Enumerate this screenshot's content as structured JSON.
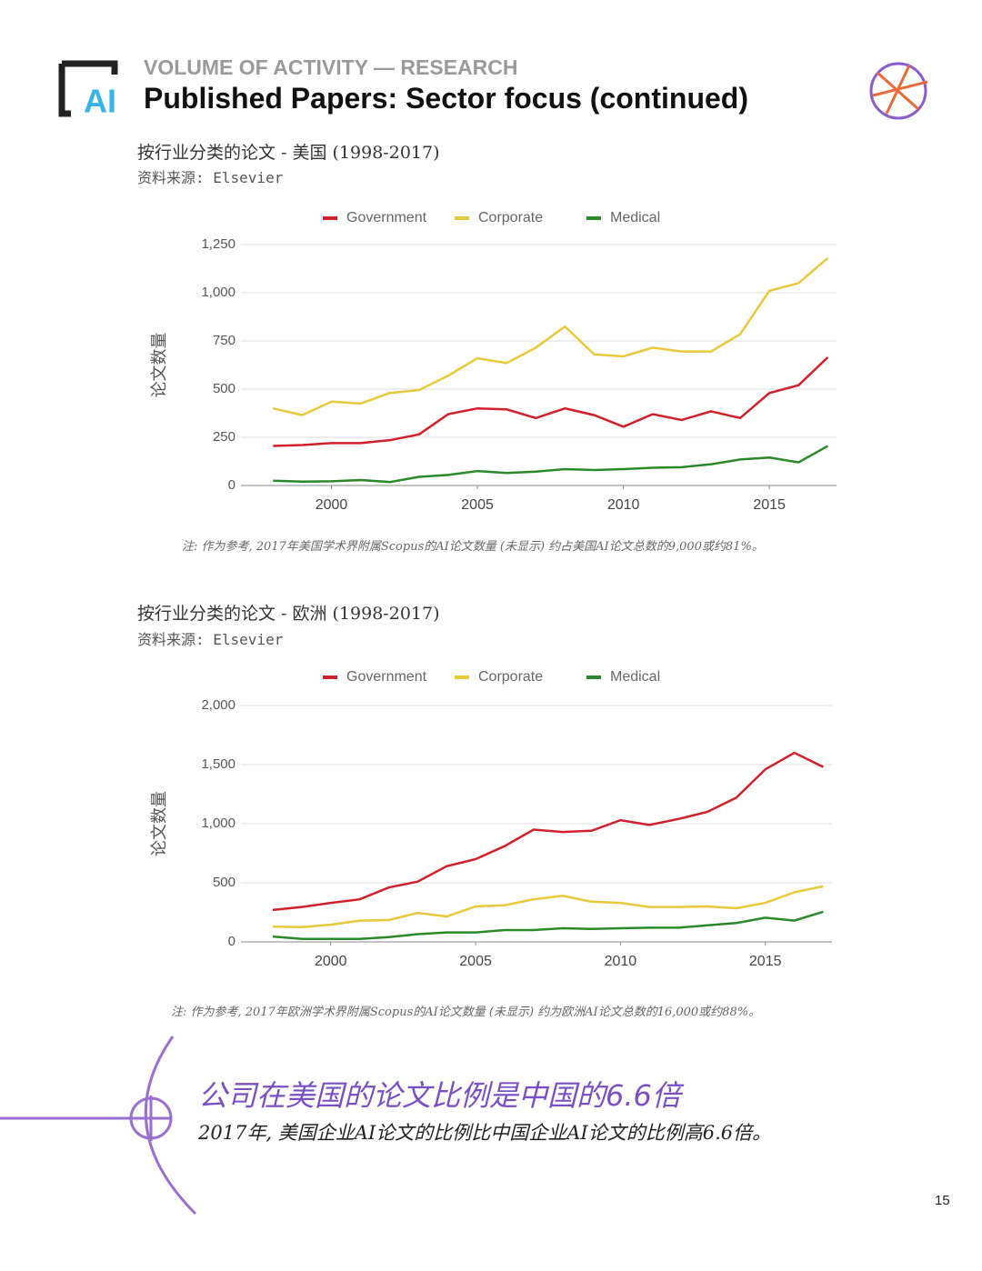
{
  "header": {
    "kicker": "VOLUME OF ACTIVITY — RESEARCH",
    "title": "Published Papers: Sector focus (continued)"
  },
  "chart_data": [
    {
      "type": "line",
      "title": "按行业分类的论文 - 美国 (1998-2017)",
      "source": "资料来源: Elsevier",
      "y_label": "论文数量",
      "x": [
        1998,
        1999,
        2000,
        2001,
        2002,
        2003,
        2004,
        2005,
        2006,
        2007,
        2008,
        2009,
        2010,
        2011,
        2012,
        2013,
        2014,
        2015,
        2016,
        2017
      ],
      "series": [
        {
          "name": "Government",
          "color": "#d0202a",
          "values": [
            205,
            210,
            220,
            220,
            235,
            265,
            370,
            400,
            395,
            350,
            400,
            365,
            305,
            370,
            340,
            385,
            350,
            480,
            520,
            665
          ]
        },
        {
          "name": "Corporate",
          "color": "#e8c93a",
          "values": [
            400,
            365,
            435,
            425,
            480,
            495,
            570,
            660,
            635,
            715,
            825,
            680,
            670,
            715,
            695,
            695,
            785,
            1010,
            1050,
            1180
          ]
        },
        {
          "name": "Medical",
          "color": "#2a8a2a",
          "values": [
            25,
            20,
            22,
            28,
            18,
            45,
            55,
            75,
            65,
            72,
            85,
            80,
            85,
            92,
            95,
            110,
            135,
            145,
            120,
            205
          ]
        }
      ],
      "xlim": [
        1996.9,
        2017.3
      ],
      "xticks": [
        2000,
        2005,
        2010,
        2015
      ],
      "ylim": [
        0,
        1250
      ],
      "yticks": [
        0,
        250,
        500,
        750,
        {
          "value": 1000,
          "label": "1,000"
        },
        {
          "value": 1250,
          "label": "1,250"
        }
      ],
      "grid": true,
      "legend": "top",
      "note": "注: 作为参考, 2017年美国学术界附属Scopus的AI论文数量 (未显示) 约占美国AI论文总数的9,000或约81%。"
    },
    {
      "type": "line",
      "title": "按行业分类的论文 - 欧洲 (1998-2017)",
      "source": "资料来源: Elsevier",
      "y_label": "论文数量",
      "x": [
        1998,
        1999,
        2000,
        2001,
        2002,
        2003,
        2004,
        2005,
        2006,
        2007,
        2008,
        2009,
        2010,
        2011,
        2012,
        2013,
        2014,
        2015,
        2016,
        2017
      ],
      "series": [
        {
          "name": "Government",
          "color": "#d0202a",
          "values": [
            270,
            295,
            330,
            360,
            460,
            510,
            640,
            700,
            810,
            950,
            930,
            940,
            1030,
            990,
            1040,
            1100,
            1220,
            1460,
            1600,
            1480
          ]
        },
        {
          "name": "Corporate",
          "color": "#e8c93a",
          "values": [
            130,
            125,
            145,
            180,
            185,
            245,
            215,
            300,
            310,
            360,
            390,
            340,
            330,
            295,
            295,
            300,
            285,
            330,
            420,
            470
          ]
        },
        {
          "name": "Medical",
          "color": "#2a8a2a",
          "values": [
            45,
            25,
            25,
            25,
            40,
            65,
            80,
            80,
            100,
            100,
            115,
            110,
            115,
            120,
            120,
            140,
            160,
            205,
            180,
            255
          ]
        }
      ],
      "xlim": [
        1996.9,
        2017.3
      ],
      "xticks": [
        2000,
        2005,
        2010,
        2015
      ],
      "ylim": [
        0,
        2000
      ],
      "yticks": [
        0,
        500,
        {
          "value": 1000,
          "label": "1,000"
        },
        {
          "value": 1500,
          "label": "1,500"
        },
        {
          "value": 2000,
          "label": "2,000"
        }
      ],
      "grid": true,
      "legend": "top",
      "note": "注: 作为参考, 2017年欧洲学术界附属Scopus的AI论文数量 (未显示) 约为欧洲AI论文总数的16,000或约88%。"
    }
  ],
  "callout": {
    "title": "公司在美国的论文比例是中国的6.6倍",
    "text": "2017年, 美国企业AI论文的比例比中国企业AI论文的比例高6.6倍。"
  },
  "page_number": "15"
}
